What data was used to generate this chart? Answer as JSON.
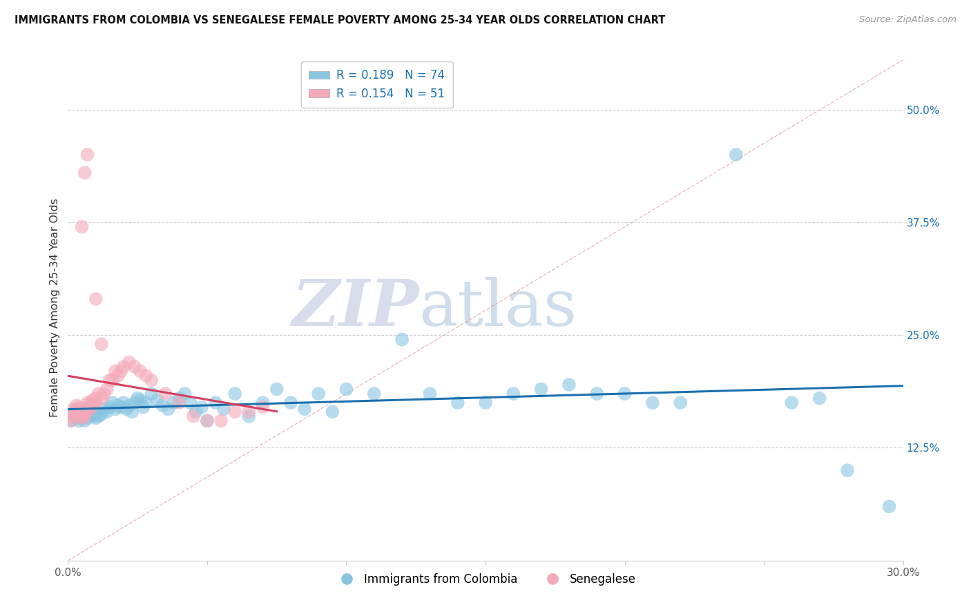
{
  "title": "IMMIGRANTS FROM COLOMBIA VS SENEGALESE FEMALE POVERTY AMONG 25-34 YEAR OLDS CORRELATION CHART",
  "source": "Source: ZipAtlas.com",
  "ylabel": "Female Poverty Among 25-34 Year Olds",
  "xlim": [
    0.0,
    0.3
  ],
  "ylim": [
    0.0,
    0.56
  ],
  "right_ytick_values": [
    0.5,
    0.375,
    0.25,
    0.125
  ],
  "right_ytick_labels": [
    "50.0%",
    "37.5%",
    "25.0%",
    "12.5%"
  ],
  "blue_color": "#89c4e1",
  "pink_color": "#f4a9b8",
  "blue_line_color": "#1a6faf",
  "pink_line_color": "#d44060",
  "R_blue": 0.189,
  "N_blue": 74,
  "R_pink": 0.154,
  "N_pink": 51,
  "legend_label_blue": "Immigrants from Colombia",
  "legend_label_pink": "Senegalese",
  "watermark_zip": "ZIP",
  "watermark_atlas": "atlas",
  "blue_x": [
    0.001,
    0.002,
    0.002,
    0.003,
    0.003,
    0.004,
    0.004,
    0.005,
    0.005,
    0.006,
    0.006,
    0.007,
    0.007,
    0.008,
    0.009,
    0.01,
    0.01,
    0.011,
    0.012,
    0.013,
    0.014,
    0.015,
    0.016,
    0.017,
    0.018,
    0.019,
    0.02,
    0.021,
    0.022,
    0.023,
    0.024,
    0.025,
    0.026,
    0.027,
    0.028,
    0.03,
    0.032,
    0.034,
    0.036,
    0.038,
    0.04,
    0.042,
    0.044,
    0.046,
    0.048,
    0.05,
    0.053,
    0.056,
    0.06,
    0.065,
    0.07,
    0.075,
    0.08,
    0.085,
    0.09,
    0.095,
    0.1,
    0.11,
    0.12,
    0.13,
    0.14,
    0.15,
    0.16,
    0.17,
    0.18,
    0.19,
    0.2,
    0.21,
    0.22,
    0.24,
    0.26,
    0.27,
    0.28,
    0.295
  ],
  "blue_y": [
    0.155,
    0.16,
    0.165,
    0.158,
    0.162,
    0.16,
    0.155,
    0.158,
    0.162,
    0.155,
    0.16,
    0.165,
    0.158,
    0.162,
    0.16,
    0.158,
    0.165,
    0.16,
    0.162,
    0.168,
    0.165,
    0.17,
    0.175,
    0.168,
    0.172,
    0.17,
    0.175,
    0.168,
    0.172,
    0.165,
    0.175,
    0.18,
    0.178,
    0.17,
    0.175,
    0.185,
    0.178,
    0.172,
    0.168,
    0.175,
    0.18,
    0.185,
    0.175,
    0.165,
    0.17,
    0.155,
    0.175,
    0.168,
    0.185,
    0.16,
    0.175,
    0.19,
    0.175,
    0.168,
    0.185,
    0.165,
    0.19,
    0.185,
    0.245,
    0.185,
    0.175,
    0.175,
    0.185,
    0.19,
    0.195,
    0.185,
    0.185,
    0.175,
    0.175,
    0.45,
    0.175,
    0.18,
    0.1,
    0.06
  ],
  "pink_x": [
    0.001,
    0.001,
    0.002,
    0.002,
    0.003,
    0.003,
    0.004,
    0.004,
    0.004,
    0.005,
    0.005,
    0.005,
    0.006,
    0.006,
    0.006,
    0.007,
    0.007,
    0.008,
    0.008,
    0.009,
    0.009,
    0.01,
    0.01,
    0.011,
    0.012,
    0.013,
    0.014,
    0.015,
    0.016,
    0.017,
    0.018,
    0.019,
    0.02,
    0.022,
    0.024,
    0.026,
    0.028,
    0.03,
    0.035,
    0.04,
    0.045,
    0.05,
    0.055,
    0.06,
    0.065,
    0.07,
    0.01,
    0.012,
    0.005,
    0.006,
    0.007
  ],
  "pink_y": [
    0.155,
    0.16,
    0.16,
    0.168,
    0.165,
    0.172,
    0.16,
    0.165,
    0.17,
    0.158,
    0.163,
    0.168,
    0.16,
    0.165,
    0.162,
    0.17,
    0.175,
    0.168,
    0.175,
    0.172,
    0.178,
    0.175,
    0.18,
    0.185,
    0.18,
    0.185,
    0.19,
    0.2,
    0.2,
    0.21,
    0.205,
    0.21,
    0.215,
    0.22,
    0.215,
    0.21,
    0.205,
    0.2,
    0.185,
    0.175,
    0.16,
    0.155,
    0.155,
    0.165,
    0.165,
    0.17,
    0.29,
    0.24,
    0.37,
    0.43,
    0.45
  ]
}
